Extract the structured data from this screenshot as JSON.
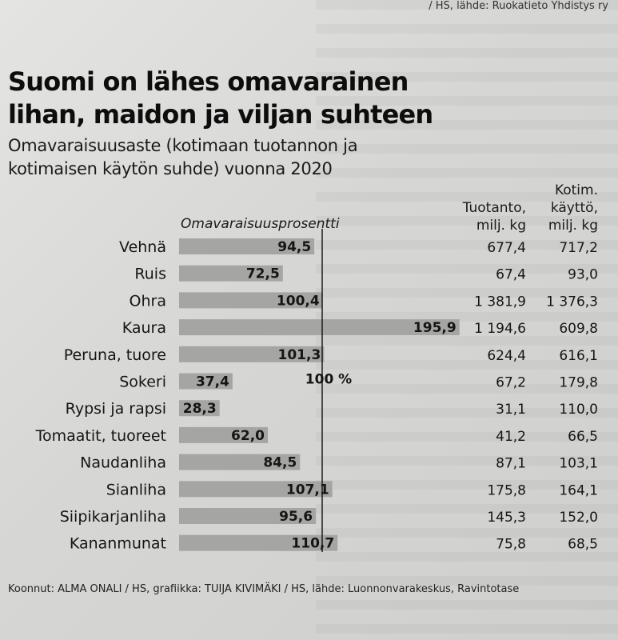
{
  "top_credit": "/ HS, lähde: Ruokatieto Yhdistys ry",
  "title_lines": [
    "Suomi on lähes omavarainen",
    "lihan, maidon ja viljan suhteen"
  ],
  "subtitle_lines": [
    "Omavaraisuusaste (kotimaan tuotannon ja",
    "kotimaisen käytön suhde) vuonna 2020"
  ],
  "footer": "Koonnut: ALMA ONALI / HS, grafiikka: TUIJA KIVIMÄKI / HS, lähde: Luonnonvarakeskus, Ravintotase",
  "colors": {
    "bar": "#a5a5a3",
    "text": "#151515",
    "line": "#111111"
  },
  "chart_data": {
    "type": "bar",
    "orientation": "horizontal",
    "xlabel": "Omavaraisuusprosentti",
    "reference_line": {
      "value": 100,
      "label": "100 %"
    },
    "categories": [
      "Vehnä",
      "Ruis",
      "Ohra",
      "Kaura",
      "Peruna, tuore",
      "Sokeri",
      "Rypsi ja rapsi",
      "Tomaatit, tuoreet",
      "Naudanliha",
      "Sianliha",
      "Siipikarjanliha",
      "Kananmunat"
    ],
    "values": [
      94.5,
      72.5,
      100.4,
      195.9,
      101.3,
      37.4,
      28.3,
      62.0,
      84.5,
      107.1,
      95.6,
      110.7
    ],
    "value_labels": [
      "94,5",
      "72,5",
      "100,4",
      "195,9",
      "101,3",
      "37,4",
      "28,3",
      "62,0",
      "84,5",
      "107,1",
      "95,6",
      "110,7"
    ],
    "xlim": [
      0,
      200
    ],
    "table_columns": [
      {
        "header": "Tuotanto,\nmilj. kg",
        "values": [
          "677,4",
          "67,4",
          "1 381,9",
          "1 194,6",
          "624,4",
          "67,2",
          "31,1",
          "41,2",
          "87,1",
          "175,8",
          "145,3",
          "75,8"
        ]
      },
      {
        "header": "Kotim.\nkäyttö,\nmilj. kg",
        "values": [
          "717,2",
          "93,0",
          "1 376,3",
          "609,8",
          "616,1",
          "179,8",
          "110,0",
          "66,5",
          "103,1",
          "164,1",
          "152,0",
          "68,5"
        ]
      }
    ]
  }
}
